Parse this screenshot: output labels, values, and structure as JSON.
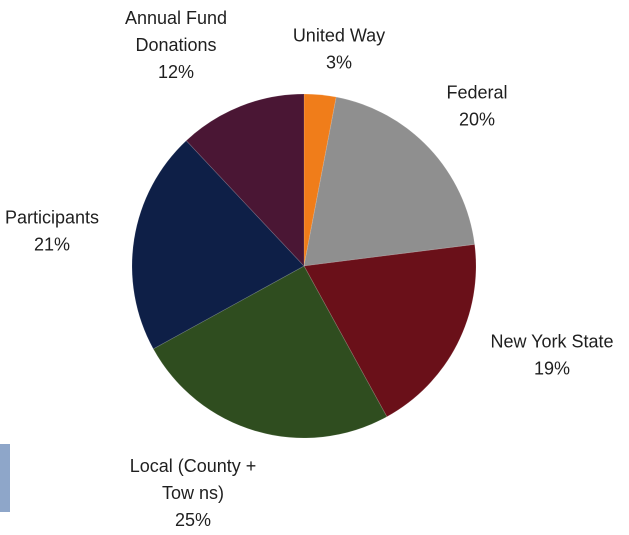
{
  "chart_data": {
    "type": "pie",
    "title": "",
    "slices": [
      {
        "name": "United Way",
        "value": 3,
        "label_lines": [
          "United Way",
          "3%"
        ],
        "color": "#f07d1a"
      },
      {
        "name": "Federal",
        "value": 20,
        "label_lines": [
          "Federal",
          "20%"
        ],
        "color": "#8f8f8f"
      },
      {
        "name": "New York State",
        "value": 19,
        "label_lines": [
          "New  York State",
          "19%"
        ],
        "color": "#6a1019"
      },
      {
        "name": "Local (County + Towns)",
        "value": 25,
        "label_lines": [
          "Local (County +",
          "Tow ns)",
          "25%"
        ],
        "color": "#2f4d1f"
      },
      {
        "name": "Participants",
        "value": 21,
        "label_lines": [
          "Participants",
          "21%"
        ],
        "color": "#0e1f47"
      },
      {
        "name": "Annual Fund Donations",
        "value": 12,
        "label_lines": [
          "Annual Fund",
          "Donations",
          "12%"
        ],
        "color": "#4a1634"
      }
    ]
  }
}
